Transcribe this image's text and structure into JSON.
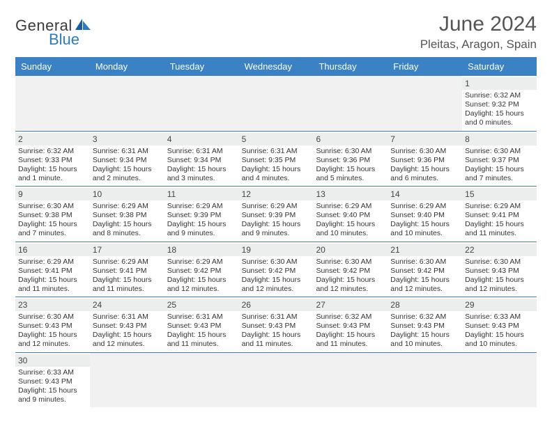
{
  "logo": {
    "text1": "General",
    "text2": "Blue"
  },
  "title": "June 2024",
  "location": "Pleitas, Aragon, Spain",
  "colors": {
    "header_bg": "#3a82c4",
    "header_text": "#ffffff",
    "daynum_bg": "#eceded",
    "border": "#3a82c4",
    "blank_bg": "#f1f1f1"
  },
  "day_names": [
    "Sunday",
    "Monday",
    "Tuesday",
    "Wednesday",
    "Thursday",
    "Friday",
    "Saturday"
  ],
  "weeks": [
    [
      {
        "blank": true
      },
      {
        "blank": true
      },
      {
        "blank": true
      },
      {
        "blank": true
      },
      {
        "blank": true
      },
      {
        "blank": true
      },
      {
        "day": "1",
        "sunrise": "Sunrise: 6:32 AM",
        "sunset": "Sunset: 9:32 PM",
        "daylight1": "Daylight: 15 hours",
        "daylight2": "and 0 minutes."
      }
    ],
    [
      {
        "day": "2",
        "sunrise": "Sunrise: 6:32 AM",
        "sunset": "Sunset: 9:33 PM",
        "daylight1": "Daylight: 15 hours",
        "daylight2": "and 1 minute."
      },
      {
        "day": "3",
        "sunrise": "Sunrise: 6:31 AM",
        "sunset": "Sunset: 9:34 PM",
        "daylight1": "Daylight: 15 hours",
        "daylight2": "and 2 minutes."
      },
      {
        "day": "4",
        "sunrise": "Sunrise: 6:31 AM",
        "sunset": "Sunset: 9:34 PM",
        "daylight1": "Daylight: 15 hours",
        "daylight2": "and 3 minutes."
      },
      {
        "day": "5",
        "sunrise": "Sunrise: 6:31 AM",
        "sunset": "Sunset: 9:35 PM",
        "daylight1": "Daylight: 15 hours",
        "daylight2": "and 4 minutes."
      },
      {
        "day": "6",
        "sunrise": "Sunrise: 6:30 AM",
        "sunset": "Sunset: 9:36 PM",
        "daylight1": "Daylight: 15 hours",
        "daylight2": "and 5 minutes."
      },
      {
        "day": "7",
        "sunrise": "Sunrise: 6:30 AM",
        "sunset": "Sunset: 9:36 PM",
        "daylight1": "Daylight: 15 hours",
        "daylight2": "and 6 minutes."
      },
      {
        "day": "8",
        "sunrise": "Sunrise: 6:30 AM",
        "sunset": "Sunset: 9:37 PM",
        "daylight1": "Daylight: 15 hours",
        "daylight2": "and 7 minutes."
      }
    ],
    [
      {
        "day": "9",
        "sunrise": "Sunrise: 6:30 AM",
        "sunset": "Sunset: 9:38 PM",
        "daylight1": "Daylight: 15 hours",
        "daylight2": "and 7 minutes."
      },
      {
        "day": "10",
        "sunrise": "Sunrise: 6:29 AM",
        "sunset": "Sunset: 9:38 PM",
        "daylight1": "Daylight: 15 hours",
        "daylight2": "and 8 minutes."
      },
      {
        "day": "11",
        "sunrise": "Sunrise: 6:29 AM",
        "sunset": "Sunset: 9:39 PM",
        "daylight1": "Daylight: 15 hours",
        "daylight2": "and 9 minutes."
      },
      {
        "day": "12",
        "sunrise": "Sunrise: 6:29 AM",
        "sunset": "Sunset: 9:39 PM",
        "daylight1": "Daylight: 15 hours",
        "daylight2": "and 9 minutes."
      },
      {
        "day": "13",
        "sunrise": "Sunrise: 6:29 AM",
        "sunset": "Sunset: 9:40 PM",
        "daylight1": "Daylight: 15 hours",
        "daylight2": "and 10 minutes."
      },
      {
        "day": "14",
        "sunrise": "Sunrise: 6:29 AM",
        "sunset": "Sunset: 9:40 PM",
        "daylight1": "Daylight: 15 hours",
        "daylight2": "and 10 minutes."
      },
      {
        "day": "15",
        "sunrise": "Sunrise: 6:29 AM",
        "sunset": "Sunset: 9:41 PM",
        "daylight1": "Daylight: 15 hours",
        "daylight2": "and 11 minutes."
      }
    ],
    [
      {
        "day": "16",
        "sunrise": "Sunrise: 6:29 AM",
        "sunset": "Sunset: 9:41 PM",
        "daylight1": "Daylight: 15 hours",
        "daylight2": "and 11 minutes."
      },
      {
        "day": "17",
        "sunrise": "Sunrise: 6:29 AM",
        "sunset": "Sunset: 9:41 PM",
        "daylight1": "Daylight: 15 hours",
        "daylight2": "and 11 minutes."
      },
      {
        "day": "18",
        "sunrise": "Sunrise: 6:29 AM",
        "sunset": "Sunset: 9:42 PM",
        "daylight1": "Daylight: 15 hours",
        "daylight2": "and 12 minutes."
      },
      {
        "day": "19",
        "sunrise": "Sunrise: 6:30 AM",
        "sunset": "Sunset: 9:42 PM",
        "daylight1": "Daylight: 15 hours",
        "daylight2": "and 12 minutes."
      },
      {
        "day": "20",
        "sunrise": "Sunrise: 6:30 AM",
        "sunset": "Sunset: 9:42 PM",
        "daylight1": "Daylight: 15 hours",
        "daylight2": "and 12 minutes."
      },
      {
        "day": "21",
        "sunrise": "Sunrise: 6:30 AM",
        "sunset": "Sunset: 9:42 PM",
        "daylight1": "Daylight: 15 hours",
        "daylight2": "and 12 minutes."
      },
      {
        "day": "22",
        "sunrise": "Sunrise: 6:30 AM",
        "sunset": "Sunset: 9:43 PM",
        "daylight1": "Daylight: 15 hours",
        "daylight2": "and 12 minutes."
      }
    ],
    [
      {
        "day": "23",
        "sunrise": "Sunrise: 6:30 AM",
        "sunset": "Sunset: 9:43 PM",
        "daylight1": "Daylight: 15 hours",
        "daylight2": "and 12 minutes."
      },
      {
        "day": "24",
        "sunrise": "Sunrise: 6:31 AM",
        "sunset": "Sunset: 9:43 PM",
        "daylight1": "Daylight: 15 hours",
        "daylight2": "and 12 minutes."
      },
      {
        "day": "25",
        "sunrise": "Sunrise: 6:31 AM",
        "sunset": "Sunset: 9:43 PM",
        "daylight1": "Daylight: 15 hours",
        "daylight2": "and 11 minutes."
      },
      {
        "day": "26",
        "sunrise": "Sunrise: 6:31 AM",
        "sunset": "Sunset: 9:43 PM",
        "daylight1": "Daylight: 15 hours",
        "daylight2": "and 11 minutes."
      },
      {
        "day": "27",
        "sunrise": "Sunrise: 6:32 AM",
        "sunset": "Sunset: 9:43 PM",
        "daylight1": "Daylight: 15 hours",
        "daylight2": "and 11 minutes."
      },
      {
        "day": "28",
        "sunrise": "Sunrise: 6:32 AM",
        "sunset": "Sunset: 9:43 PM",
        "daylight1": "Daylight: 15 hours",
        "daylight2": "and 10 minutes."
      },
      {
        "day": "29",
        "sunrise": "Sunrise: 6:33 AM",
        "sunset": "Sunset: 9:43 PM",
        "daylight1": "Daylight: 15 hours",
        "daylight2": "and 10 minutes."
      }
    ],
    [
      {
        "day": "30",
        "sunrise": "Sunrise: 6:33 AM",
        "sunset": "Sunset: 9:43 PM",
        "daylight1": "Daylight: 15 hours",
        "daylight2": "and 9 minutes."
      },
      {
        "blank": true
      },
      {
        "blank": true
      },
      {
        "blank": true
      },
      {
        "blank": true
      },
      {
        "blank": true
      },
      {
        "blank": true
      }
    ]
  ]
}
